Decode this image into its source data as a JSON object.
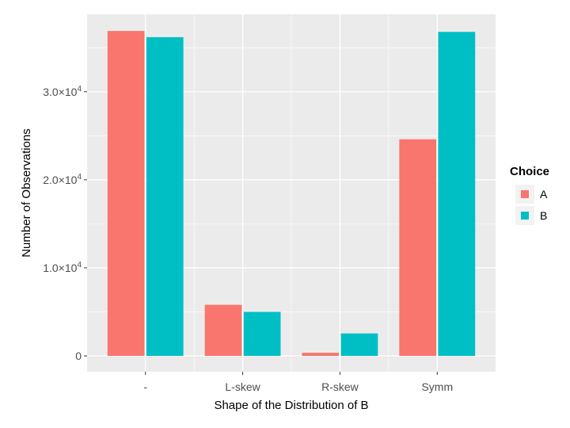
{
  "chart_data": {
    "type": "bar",
    "categories": [
      "-",
      "L-skew",
      "R-skew",
      "Symm"
    ],
    "series": [
      {
        "name": "A",
        "color": "#F8766D",
        "values": [
          36900,
          5800,
          350,
          24600
        ]
      },
      {
        "name": "B",
        "color": "#00BFC4",
        "values": [
          36200,
          5000,
          2550,
          36800
        ]
      }
    ],
    "xlabel": "Shape of the Distribution of B",
    "ylabel": "Number of Observations",
    "ylim": [
      -1800,
      38800
    ],
    "yticks": [
      0,
      10000,
      20000,
      30000
    ],
    "ytick_labels": [
      {
        "value": 0,
        "mantissa": "0",
        "exponent": ""
      },
      {
        "value": 10000,
        "mantissa": "1.0×10",
        "exponent": "4"
      },
      {
        "value": 20000,
        "mantissa": "2.0×10",
        "exponent": "4"
      },
      {
        "value": 30000,
        "mantissa": "3.0×10",
        "exponent": "4"
      }
    ],
    "legend": {
      "title": "Choice",
      "position": "right"
    },
    "grid": true,
    "panel_background": "#EBEBEB",
    "grid_color": "#FFFFFF"
  }
}
